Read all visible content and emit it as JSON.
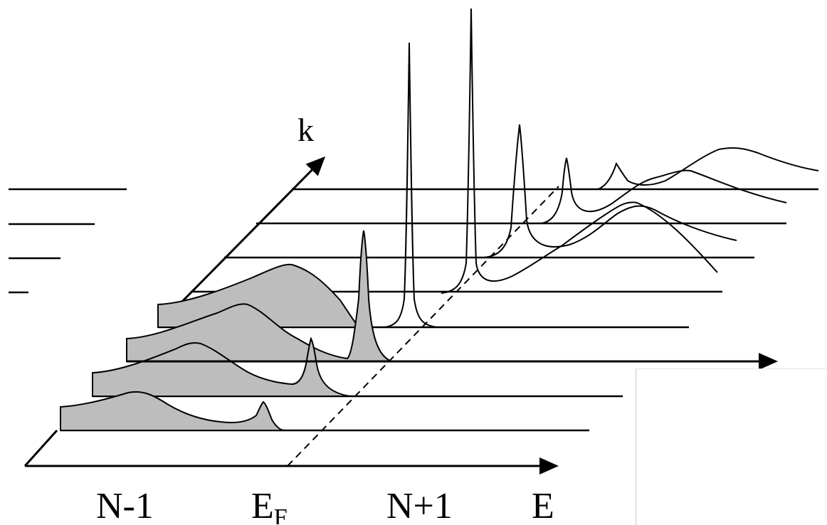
{
  "labels": {
    "k_axis": "k",
    "n_minus_1": "N-1",
    "fermi_main": "E",
    "fermi_sub": "F",
    "n_plus_1": "N+1",
    "energy_axis": "E"
  },
  "colors": {
    "shading": "#bdbdbd",
    "line": "#000000"
  }
}
